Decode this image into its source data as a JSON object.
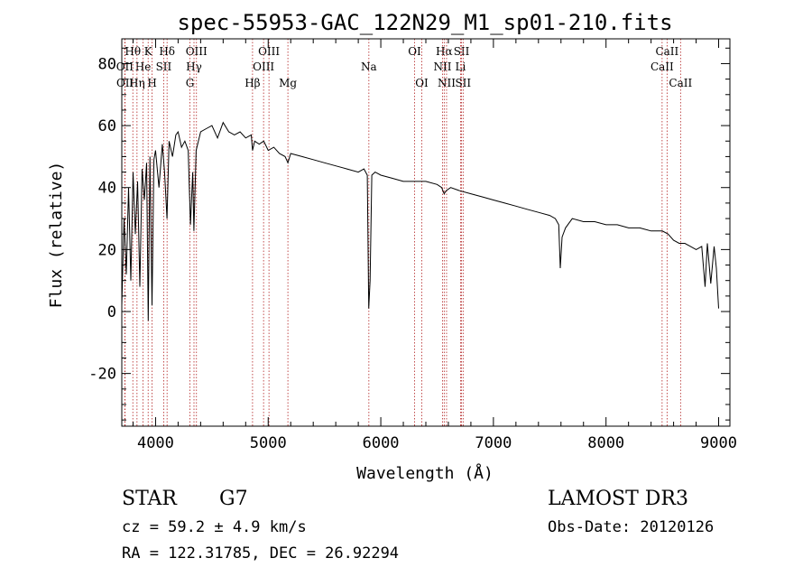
{
  "chart_data": {
    "type": "line",
    "title": "spec-55953-GAC_122N29_M1_sp01-210.fits",
    "xlabel": "Wavelength (Å)",
    "ylabel": "Flux (relative)",
    "xlim": [
      3700,
      9100
    ],
    "ylim": [
      -37,
      88
    ],
    "xticks": [
      "4000",
      "5000",
      "6000",
      "7000",
      "8000",
      "9000"
    ],
    "yticks": [
      "-20",
      "0",
      "20",
      "40",
      "60",
      "80"
    ],
    "spectrum": {
      "x": [
        3700,
        3720,
        3740,
        3760,
        3780,
        3800,
        3820,
        3840,
        3860,
        3880,
        3900,
        3920,
        3935,
        3950,
        3968,
        3985,
        4000,
        4030,
        4060,
        4080,
        4101,
        4120,
        4150,
        4180,
        4200,
        4230,
        4260,
        4290,
        4310,
        4330,
        4340,
        4360,
        4380,
        4400,
        4450,
        4500,
        4550,
        4600,
        4650,
        4700,
        4750,
        4800,
        4850,
        4861,
        4880,
        4920,
        4960,
        5000,
        5050,
        5100,
        5150,
        5175,
        5200,
        5300,
        5400,
        5500,
        5600,
        5700,
        5800,
        5850,
        5880,
        5893,
        5905,
        5920,
        5950,
        6000,
        6100,
        6200,
        6300,
        6400,
        6500,
        6540,
        6563,
        6580,
        6620,
        6700,
        6800,
        6900,
        7000,
        7100,
        7200,
        7300,
        7400,
        7500,
        7550,
        7580,
        7594,
        7610,
        7640,
        7700,
        7800,
        7900,
        8000,
        8100,
        8200,
        8300,
        8400,
        8500,
        8550,
        8600,
        8650,
        8700,
        8750,
        8800,
        8850,
        8880,
        8900,
        8930,
        8960,
        8980,
        9000
      ],
      "y": [
        2,
        30,
        12,
        40,
        10,
        45,
        25,
        42,
        8,
        46,
        36,
        48,
        -3,
        50,
        2,
        49,
        52,
        40,
        54,
        45,
        30,
        55,
        50,
        57,
        58,
        53,
        55,
        52,
        28,
        45,
        26,
        52,
        55,
        58,
        59,
        60,
        56,
        61,
        58,
        57,
        58,
        56,
        57,
        52,
        55,
        54,
        55,
        52,
        53,
        51,
        50,
        48,
        51,
        50,
        49,
        48,
        47,
        46,
        45,
        46,
        44,
        1,
        10,
        44,
        45,
        44,
        43,
        42,
        42,
        42,
        41,
        40,
        38,
        39,
        40,
        39,
        38,
        37,
        36,
        35,
        34,
        33,
        32,
        31,
        30,
        28,
        14,
        24,
        27,
        30,
        29,
        29,
        28,
        28,
        27,
        27,
        26,
        26,
        25,
        23,
        22,
        22,
        21,
        20,
        21,
        8,
        22,
        9,
        21,
        14,
        1
      ]
    },
    "lines": [
      {
        "label": "Hθ",
        "x": 3798,
        "row": 1
      },
      {
        "label": "OII",
        "x": 3727,
        "row": 2
      },
      {
        "label": "OII",
        "x": 3729,
        "row": 3
      },
      {
        "label": "K",
        "x": 3934,
        "row": 1
      },
      {
        "label": "He",
        "x": 3889,
        "row": 2
      },
      {
        "label": "Hη",
        "x": 3835,
        "row": 3
      },
      {
        "label": "Hδ",
        "x": 4102,
        "row": 1
      },
      {
        "label": "SII",
        "x": 4072,
        "row": 2
      },
      {
        "label": "H",
        "x": 3969,
        "row": 3
      },
      {
        "label": "OIII",
        "x": 4363,
        "row": 1
      },
      {
        "label": "Hγ",
        "x": 4341,
        "row": 2
      },
      {
        "label": "G",
        "x": 4305,
        "row": 3
      },
      {
        "label": "OIII",
        "x": 5007,
        "row": 1
      },
      {
        "label": "OIII",
        "x": 4959,
        "row": 2
      },
      {
        "label": "Hβ",
        "x": 4861,
        "row": 3
      },
      {
        "label": "Mg",
        "x": 5175,
        "row": 3
      },
      {
        "label": "Na",
        "x": 5894,
        "row": 2
      },
      {
        "label": "OI",
        "x": 6300,
        "row": 1
      },
      {
        "label": "OI",
        "x": 6364,
        "row": 3
      },
      {
        "label": "Hα",
        "x": 6563,
        "row": 1
      },
      {
        "label": "NII",
        "x": 6548,
        "row": 2
      },
      {
        "label": "NII",
        "x": 6584,
        "row": 3
      },
      {
        "label": "SII",
        "x": 6717,
        "row": 1
      },
      {
        "label": "Li",
        "x": 6708,
        "row": 2
      },
      {
        "label": "SII",
        "x": 6731,
        "row": 3
      },
      {
        "label": "CaII",
        "x": 8542,
        "row": 1
      },
      {
        "label": "CaII",
        "x": 8498,
        "row": 2
      },
      {
        "label": "CaII",
        "x": 8662,
        "row": 3
      }
    ]
  },
  "info": {
    "class": "STAR",
    "subclass": "G7",
    "survey": "LAMOST DR3",
    "cz": "cz = 59.2 ± 4.9 km/s",
    "obs_date": "Obs-Date: 20120126",
    "radec": "RA = 122.31785, DEC =  26.92294"
  },
  "colors": {
    "spectrum": "#000000",
    "lines": "#b22222",
    "axes": "#000000"
  }
}
